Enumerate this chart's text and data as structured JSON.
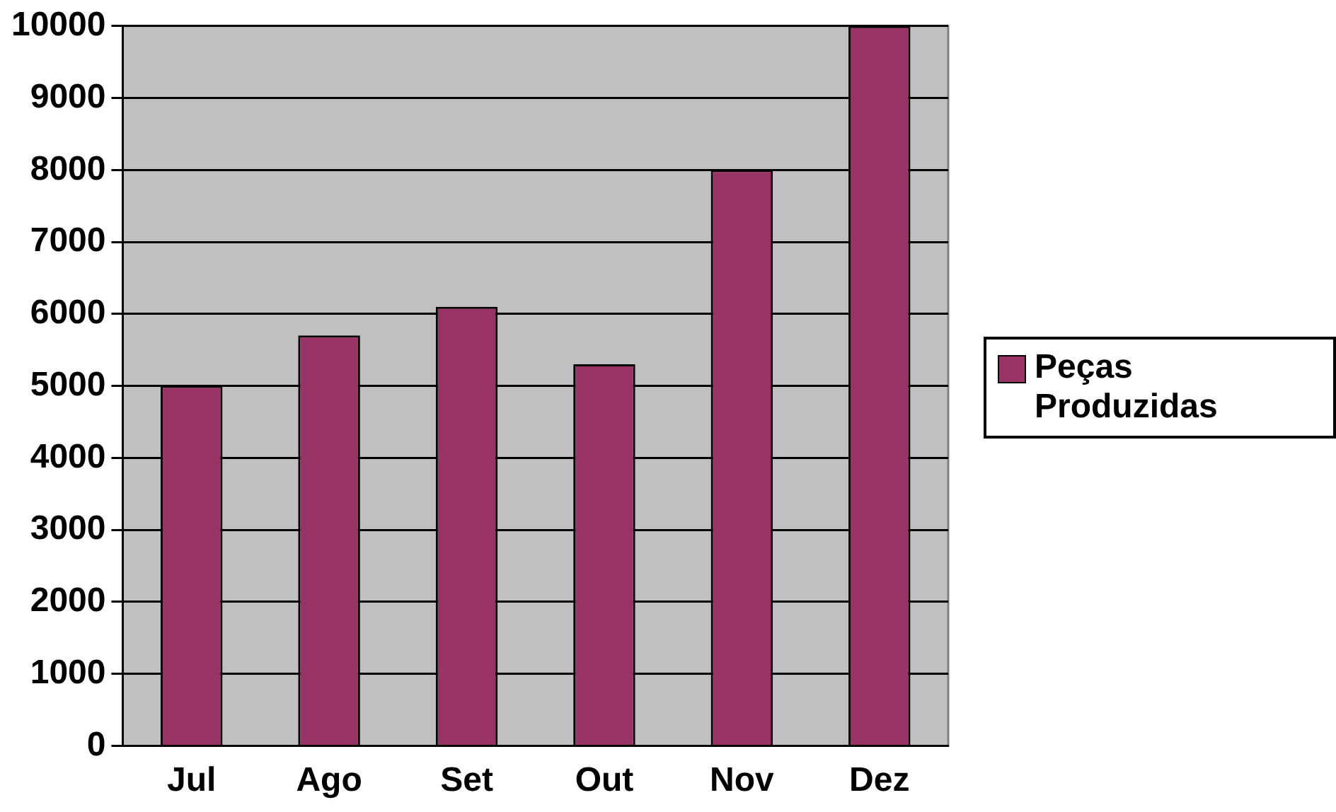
{
  "chart_data": {
    "type": "bar",
    "categories": [
      "Jul",
      "Ago",
      "Set",
      "Out",
      "Nov",
      "Dez"
    ],
    "series": [
      {
        "name": "Peças Produzidas",
        "color": "#993366",
        "values": [
          5000,
          5700,
          6100,
          5300,
          8000,
          10000
        ]
      }
    ],
    "ylim": [
      0,
      10000
    ],
    "yticks": [
      0,
      1000,
      2000,
      3000,
      4000,
      5000,
      6000,
      7000,
      8000,
      9000,
      10000
    ],
    "grid": "y",
    "legend": "right"
  }
}
